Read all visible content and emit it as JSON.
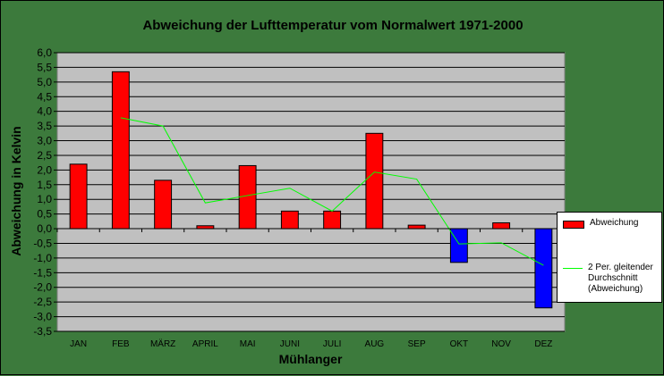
{
  "chart_data": {
    "type": "bar",
    "title": "Abweichung der Lufttemperatur vom Normalwert 1971-2000",
    "xlabel": "Mühlanger",
    "ylabel": "Abweichung in Kelvin",
    "ylim": [
      -3.5,
      6.0
    ],
    "ytick_step": 0.5,
    "ytick_labels": [
      "-3,5",
      "-3,0",
      "-2,5",
      "-2,0",
      "-1,5",
      "-1,0",
      "-0,5",
      "0,0",
      "0,5",
      "1,0",
      "1,5",
      "2,0",
      "2,5",
      "3,0",
      "3,5",
      "4,0",
      "4,5",
      "5,0",
      "5,5",
      "6,0"
    ],
    "categories": [
      "JAN",
      "FEB",
      "MÄRZ",
      "APRIL",
      "MAI",
      "JUNI",
      "JULI",
      "AUG",
      "SEP",
      "OKT",
      "NOV",
      "DEZ"
    ],
    "series": [
      {
        "name": "Abweichung",
        "type": "bar",
        "values": [
          2.2,
          5.35,
          1.65,
          0.1,
          2.15,
          0.6,
          0.6,
          3.25,
          0.12,
          -1.15,
          0.2,
          -2.7
        ],
        "positive_color": "#ff0000",
        "negative_color": "#0000ff"
      },
      {
        "name": "2 Per. gleitender Durchschnitt (Abweichung)",
        "type": "line",
        "values": [
          null,
          3.78,
          3.5,
          0.88,
          1.13,
          1.38,
          0.6,
          1.93,
          1.69,
          -0.52,
          -0.48,
          -1.25
        ],
        "color": "#00ff00"
      }
    ],
    "grid": true,
    "legend_position": "right",
    "plot_background": "#c0c0c0",
    "page_background": "#3c7a3c"
  }
}
